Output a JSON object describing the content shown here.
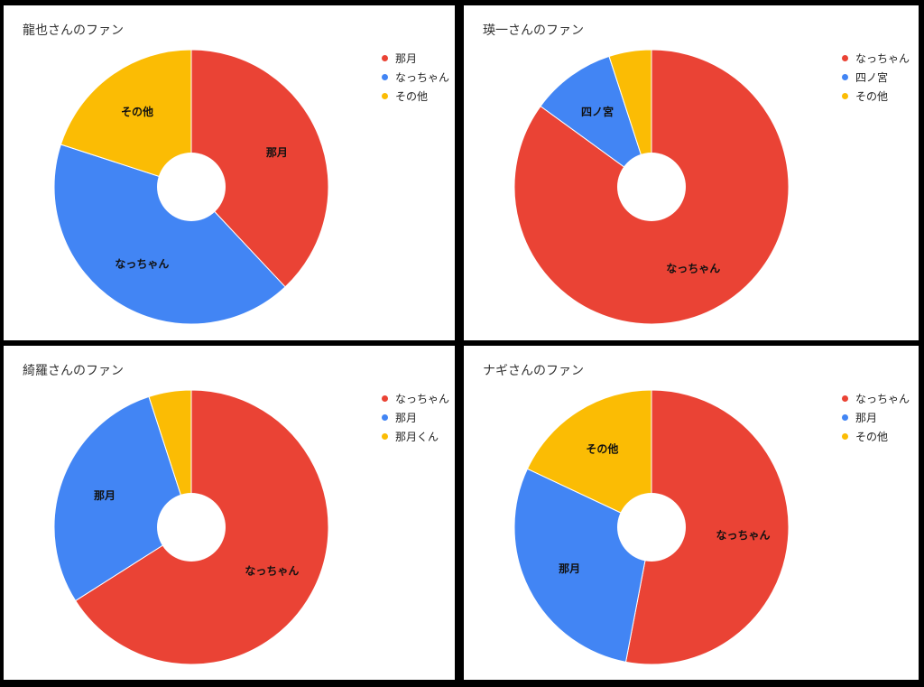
{
  "chart_data": [
    {
      "type": "pie",
      "title": "龍也さんのファン",
      "legend": "right",
      "donut_hole": true,
      "slices": [
        {
          "label": "那月",
          "value": 38,
          "color": "#ea4335"
        },
        {
          "label": "なっちゃん",
          "value": 42,
          "color": "#4285f4"
        },
        {
          "label": "その他",
          "value": 20,
          "color": "#fbbc04"
        }
      ]
    },
    {
      "type": "pie",
      "title": "瑛一さんのファン",
      "legend": "right",
      "donut_hole": true,
      "slices": [
        {
          "label": "なっちゃん",
          "value": 85,
          "color": "#ea4335"
        },
        {
          "label": "四ノ宮",
          "value": 10,
          "color": "#4285f4"
        },
        {
          "label": "その他",
          "value": 5,
          "color": "#fbbc04"
        }
      ]
    },
    {
      "type": "pie",
      "title": "綺羅さんのファン",
      "legend": "right",
      "donut_hole": true,
      "slices": [
        {
          "label": "なっちゃん",
          "value": 66,
          "color": "#ea4335"
        },
        {
          "label": "那月",
          "value": 29,
          "color": "#4285f4"
        },
        {
          "label": "那月くん",
          "value": 5,
          "color": "#fbbc04"
        }
      ]
    },
    {
      "type": "pie",
      "title": "ナギさんのファン",
      "legend": "right",
      "donut_hole": true,
      "slices": [
        {
          "label": "なっちゃん",
          "value": 53,
          "color": "#ea4335"
        },
        {
          "label": "那月",
          "value": 29,
          "color": "#4285f4"
        },
        {
          "label": "その他",
          "value": 18,
          "color": "#fbbc04"
        }
      ]
    }
  ]
}
